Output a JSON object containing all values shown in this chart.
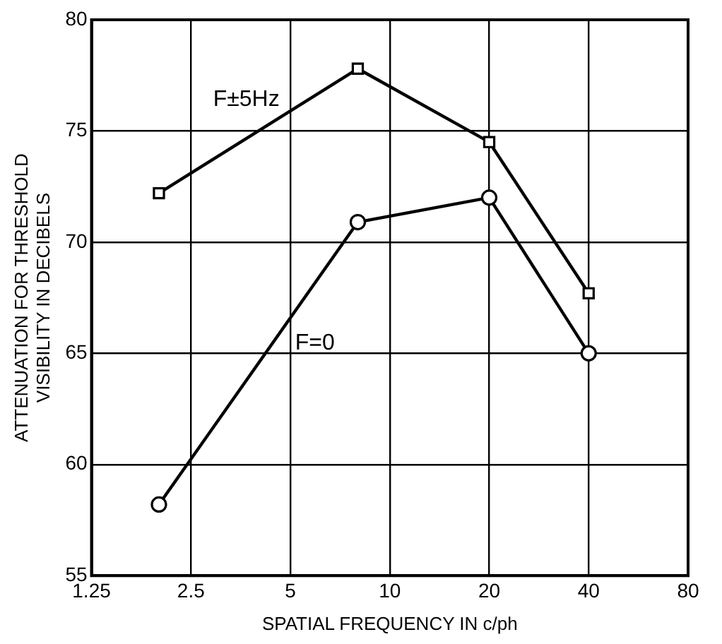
{
  "chart_data": {
    "type": "line",
    "xlabel": "SPATIAL FREQUENCY IN c/ph",
    "ylabel": "ATTENUATION FOR THRESHOLD\nVISIBILITY IN DECIBELS",
    "series": [
      {
        "name": "F±5Hz",
        "color": "#000000",
        "marker": "square",
        "x": [
          2,
          8,
          20,
          40
        ],
        "values": [
          72.2,
          77.8,
          74.5,
          67.7
        ]
      },
      {
        "name": "F=0",
        "color": "#000000",
        "marker": "circle",
        "x": [
          2,
          8,
          20,
          40
        ],
        "values": [
          58.2,
          70.9,
          72.0,
          65.0
        ]
      }
    ],
    "log": "x",
    "xlim": [
      1.25,
      80
    ],
    "xticks": [
      1.25,
      2.5,
      5,
      10,
      20,
      40,
      80
    ],
    "ylim": [
      55,
      80
    ],
    "yticks": [
      55,
      60,
      65,
      70,
      75,
      80
    ],
    "grid": true,
    "legend": false,
    "line_style": "solid"
  }
}
